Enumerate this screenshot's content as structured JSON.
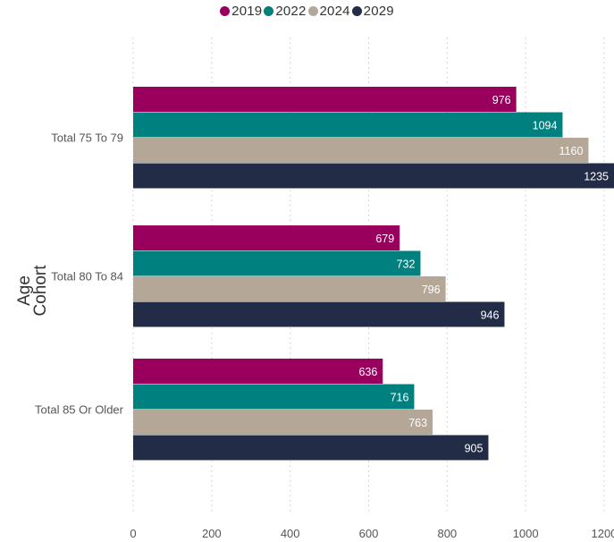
{
  "chart_data": {
    "type": "bar",
    "orientation": "horizontal",
    "title": "",
    "xlabel": "",
    "ylabel": "Age Cohort",
    "categories": [
      "Total 75 To 79",
      "Total 80 To 84",
      "Total 85 Or Older"
    ],
    "series": [
      {
        "name": "2019",
        "color": "#99005e",
        "values": [
          976,
          679,
          636
        ]
      },
      {
        "name": "2022",
        "color": "#00807f",
        "values": [
          1094,
          732,
          716
        ]
      },
      {
        "name": "2024",
        "color": "#b4a798",
        "values": [
          1160,
          796,
          763
        ]
      },
      {
        "name": "2029",
        "color": "#232c47",
        "values": [
          1235,
          946,
          905
        ]
      }
    ],
    "xlim": [
      0,
      1200
    ],
    "x_ticks": [
      0,
      200,
      400,
      600,
      800,
      1000,
      1200
    ],
    "x_tick_labels": [
      "0",
      "200",
      "400",
      "600",
      "800",
      "1000",
      "1200"
    ],
    "grid": true,
    "legend_position": "top-center",
    "data_labels": true
  }
}
